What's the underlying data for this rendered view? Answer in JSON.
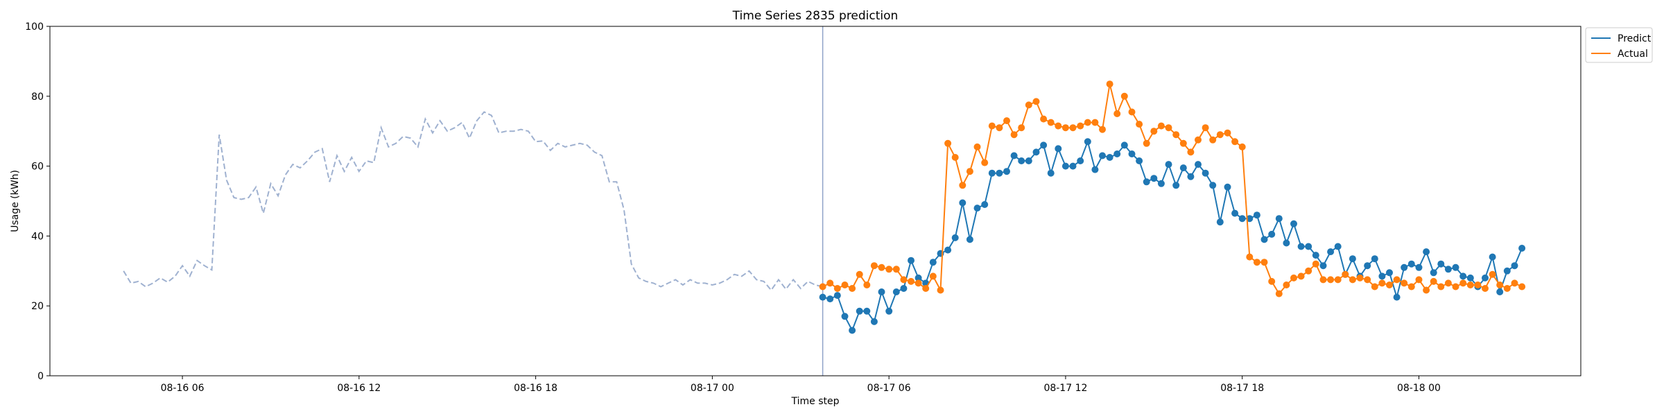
{
  "chart_data": {
    "type": "line",
    "title": "Time Series 2835 prediction",
    "xlabel": "Time step",
    "ylabel": "Usage (kWh)",
    "ylim": [
      0,
      100
    ],
    "yticks": [
      0,
      20,
      40,
      60,
      80,
      100
    ],
    "xlim": [
      "2024-08-16T01:30",
      "2024-08-18T05:30"
    ],
    "xticks": [
      {
        "t": "2024-08-16T06:00",
        "label": "08-16 06"
      },
      {
        "t": "2024-08-16T12:00",
        "label": "08-16 12"
      },
      {
        "t": "2024-08-16T18:00",
        "label": "08-16 18"
      },
      {
        "t": "2024-08-17T00:00",
        "label": "08-17 00"
      },
      {
        "t": "2024-08-17T06:00",
        "label": "08-17 06"
      },
      {
        "t": "2024-08-17T12:00",
        "label": "08-17 12"
      },
      {
        "t": "2024-08-17T18:00",
        "label": "08-17 18"
      },
      {
        "t": "2024-08-18T00:00",
        "label": "08-18 00"
      }
    ],
    "x_start": "2024-08-16T04:00",
    "x_step_minutes": 15,
    "grid": false,
    "legend_position": "top-right-outside",
    "forecast_start": "2024-08-17T03:45",
    "history": {
      "color": "#9fb1d0",
      "style": "dashed",
      "values": [
        30,
        26.5,
        27,
        25.5,
        26.5,
        28,
        26.8,
        28.5,
        31.5,
        28.5,
        33,
        31.5,
        30.3,
        69,
        56,
        51,
        50.5,
        51,
        54,
        46.5,
        55,
        51.5,
        57.5,
        60.5,
        59.5,
        61.5,
        64,
        65,
        55.5,
        63,
        58.5,
        62.5,
        58.5,
        61.5,
        61,
        71,
        65.5,
        66.5,
        68.5,
        68,
        65.5,
        73.5,
        69.5,
        73,
        70,
        71,
        72.5,
        68,
        73,
        75.5,
        74.5,
        69.5,
        70,
        70,
        70.5,
        70,
        67,
        67.2,
        64.5,
        66.5,
        65.5,
        66,
        66.5,
        66,
        64,
        63,
        55.5,
        55.5,
        47.5,
        32,
        28,
        27,
        26.5,
        25.5,
        26.5,
        27.5,
        26,
        27.5,
        26.5,
        26.5,
        26,
        26.5,
        27.5,
        29,
        28.5,
        30,
        27.5,
        27,
        24.5,
        27.5,
        24.8,
        27.5,
        25,
        27,
        26,
        25.5
      ]
    },
    "series": [
      {
        "name": "Predict",
        "color": "#1f77b4",
        "values": [
          22.5,
          22,
          23,
          17,
          13,
          18.5,
          18.5,
          15.5,
          24,
          18.5,
          24,
          25,
          33,
          28,
          26.5,
          32.5,
          35,
          36,
          39.5,
          49.5,
          39,
          48,
          49,
          58,
          58,
          58.5,
          63,
          61.5,
          61.5,
          64,
          66,
          58,
          65,
          60,
          60,
          61.5,
          67,
          59,
          63,
          62.5,
          63.5,
          66,
          63.5,
          61.5,
          55.5,
          56.5,
          55,
          60.5,
          54.5,
          59.5,
          57,
          60.5,
          58,
          54.5,
          44,
          54,
          46.5,
          45,
          45,
          46,
          39,
          40.5,
          45,
          38,
          43.5,
          37,
          37,
          34.5,
          31.5,
          35.5,
          37,
          29,
          33.5,
          28.5,
          31.5,
          33.5,
          28.5,
          29.5,
          22.5,
          31,
          32,
          31,
          35.5,
          29.5,
          32,
          30.5,
          31,
          28.5,
          28,
          25.5,
          28,
          34,
          24,
          30,
          31.5,
          36.5
        ]
      },
      {
        "name": "Actual",
        "color": "#ff7f0e",
        "values": [
          25.5,
          26.5,
          25,
          26,
          25,
          29,
          26,
          31.5,
          31,
          30.5,
          30.5,
          27.5,
          27,
          26.5,
          25,
          28.5,
          24.5,
          66.5,
          62.5,
          54.5,
          58.5,
          65.5,
          61,
          71.5,
          71,
          73,
          69,
          71,
          77.5,
          78.5,
          73.5,
          72.5,
          71.5,
          71,
          71,
          71.5,
          72.5,
          72.5,
          70.5,
          83.5,
          75,
          80,
          75.5,
          72,
          66.5,
          70,
          71.5,
          71,
          69,
          66.5,
          64,
          67.5,
          71,
          67.5,
          69,
          69.5,
          67,
          65.5,
          34,
          32.5,
          32.5,
          27,
          23.5,
          26,
          28,
          28.5,
          30,
          32,
          27.5,
          27.5,
          27.5,
          29,
          27.5,
          28,
          27.5,
          25.5,
          26.5,
          26,
          27.5,
          26.5,
          25.5,
          27.5,
          24.5,
          27,
          25.5,
          26.5,
          25.5,
          26.5,
          26,
          26,
          25,
          29,
          26,
          25,
          26.5,
          25.5
        ]
      }
    ]
  }
}
